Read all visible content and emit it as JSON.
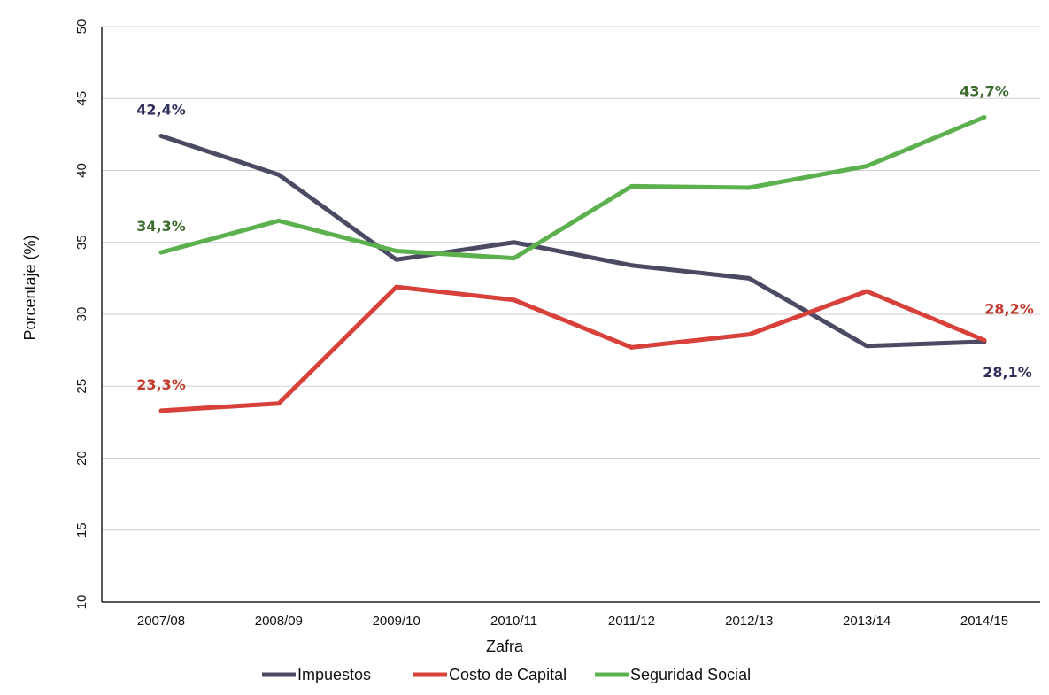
{
  "chart_data": {
    "type": "line",
    "title": "",
    "xlabel": "Zafra",
    "ylabel": "Porcentaje (%)",
    "categories": [
      "2007/08",
      "2008/09",
      "2009/10",
      "2010/11",
      "2011/12",
      "2012/13",
      "2013/14",
      "2014/15"
    ],
    "ylim": [
      10,
      50
    ],
    "yticks": [
      "10",
      "15",
      "20",
      "25",
      "30",
      "35",
      "40",
      "45",
      "50"
    ],
    "grid": true,
    "legend_position": "bottom",
    "series": [
      {
        "name": "Impuestos",
        "color": "#4a4a62",
        "values": [
          42.4,
          39.7,
          33.8,
          35.0,
          33.4,
          32.5,
          27.8,
          28.1
        ],
        "labels": [
          {
            "index": 0,
            "text": "42,4%"
          },
          {
            "index": 7,
            "text": "28,1%"
          }
        ]
      },
      {
        "name": "Costo de Capital",
        "color": "#d8403a",
        "values": [
          23.3,
          23.8,
          31.9,
          31.0,
          27.7,
          28.6,
          31.6,
          28.2
        ],
        "labels": [
          {
            "index": 0,
            "text": "23,3%"
          },
          {
            "index": 7,
            "text": "28,2%"
          }
        ]
      },
      {
        "name": "Seguridad Social",
        "color": "#5cb04e",
        "values": [
          34.3,
          36.5,
          34.4,
          33.9,
          38.9,
          38.8,
          40.3,
          43.7
        ],
        "labels": [
          {
            "index": 0,
            "text": "34,3%"
          },
          {
            "index": 7,
            "text": "43,7%"
          }
        ]
      }
    ],
    "label_colors": {
      "Impuestos": "#2e2e5a",
      "Costo de Capital": "#c0392b",
      "Seguridad Social": "#3d6b2e"
    }
  }
}
